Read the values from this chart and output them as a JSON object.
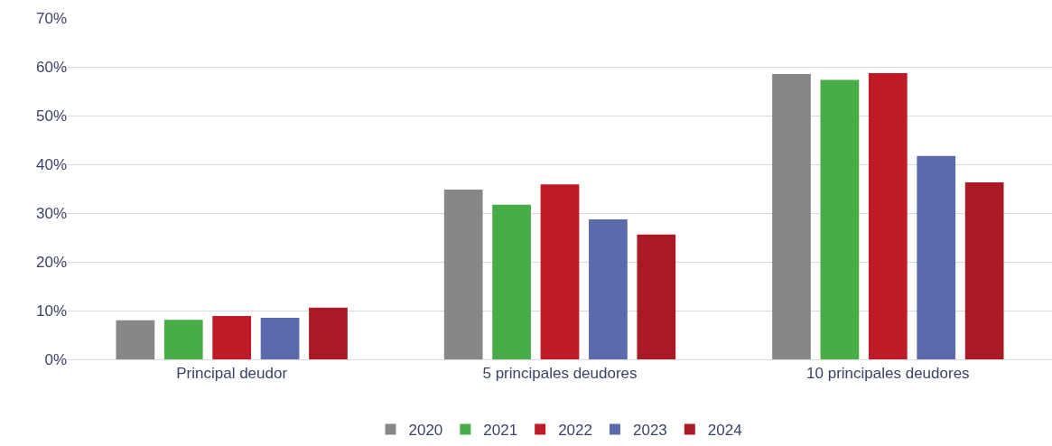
{
  "chart_data": {
    "type": "bar",
    "categories": [
      "Principal deudor",
      "5 principales deudores",
      "10 principales deudores"
    ],
    "series": [
      {
        "name": "2020",
        "color": "#878787",
        "values": [
          8.0,
          34.8,
          58.5
        ]
      },
      {
        "name": "2021",
        "color": "#46ad47",
        "values": [
          8.1,
          31.7,
          57.3
        ]
      },
      {
        "name": "2022",
        "color": "#be1b26",
        "values": [
          8.9,
          35.9,
          58.7
        ]
      },
      {
        "name": "2023",
        "color": "#5a6aad",
        "values": [
          8.5,
          28.7,
          41.7
        ]
      },
      {
        "name": "2024",
        "color": "#aa1a24",
        "values": [
          10.6,
          25.6,
          36.3
        ]
      }
    ],
    "ylim": [
      0,
      70
    ],
    "yticks": [
      {
        "value": 0,
        "label": "0%"
      },
      {
        "value": 10,
        "label": "10%"
      },
      {
        "value": 20,
        "label": "20%"
      },
      {
        "value": 30,
        "label": "30%"
      },
      {
        "value": 40,
        "label": "40%"
      },
      {
        "value": 50,
        "label": "50%"
      },
      {
        "value": 60,
        "label": "60%"
      },
      {
        "value": 70,
        "label": "70%"
      }
    ],
    "grid": "y",
    "legend": "bottom"
  }
}
